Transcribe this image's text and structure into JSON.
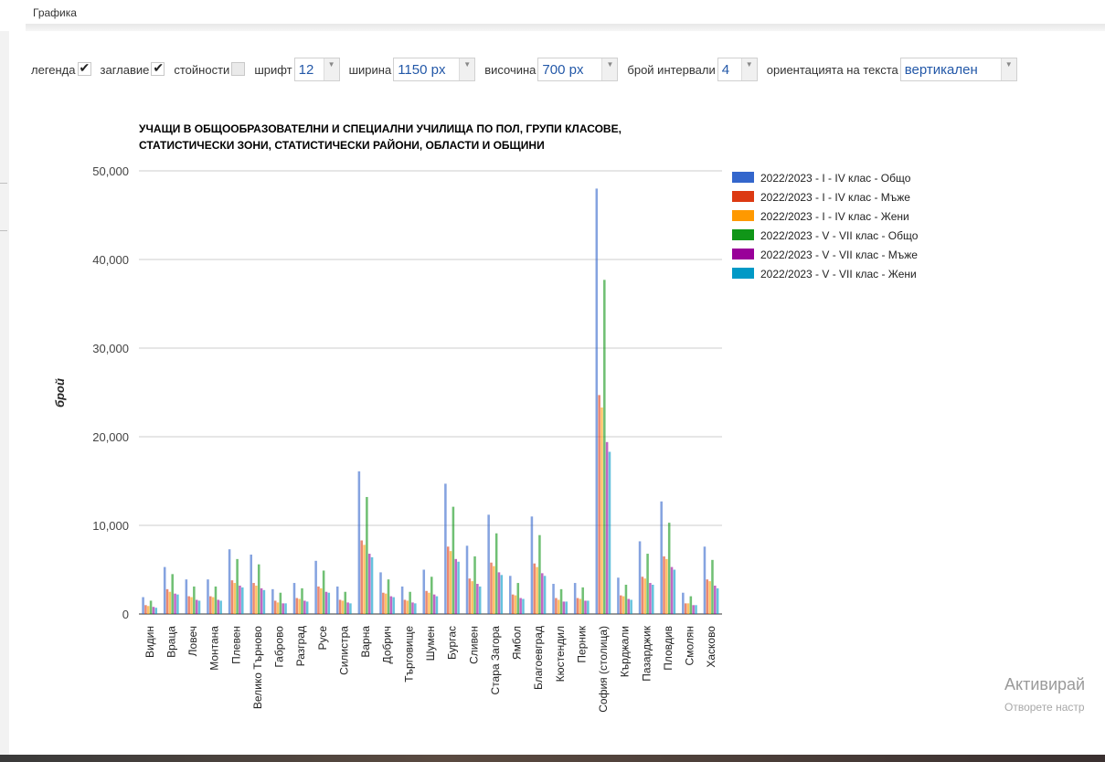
{
  "section": {
    "title": "Графика"
  },
  "controls": {
    "legend_label": "легенда",
    "legend_checked": true,
    "title_label": "заглавие",
    "title_checked": true,
    "values_label": "стойности",
    "values_checked": false,
    "font_label": "шрифт",
    "font_value": "12",
    "width_label": "ширина",
    "width_value": "1150 px",
    "height_label": "височина",
    "height_value": "700 px",
    "intervals_label": "брой интервали",
    "intervals_value": "4",
    "orientation_label": "ориентацията на текста",
    "orientation_value": "вертикален"
  },
  "watermark": {
    "line1": "Активирай",
    "line2": "Отворете настр"
  },
  "chart_data": {
    "type": "bar",
    "title_line1": "УЧАЩИ В ОБЩООБРАЗОВАТЕЛНИ И СПЕЦИАЛНИ УЧИЛИЩА ПО ПОЛ, ГРУПИ КЛАСОВЕ,",
    "title_line2": "СТАТИСТИЧЕСКИ ЗОНИ, СТАТИСТИЧЕСКИ РАЙОНИ, ОБЛАСТИ И ОБЩИНИ",
    "ylabel": "брой",
    "xlabel": "",
    "ylim": [
      0,
      50000
    ],
    "yticks": [
      0,
      10000,
      20000,
      30000,
      40000,
      50000
    ],
    "ytick_labels": [
      "0",
      "10,000",
      "20,000",
      "30,000",
      "40,000",
      "50,000"
    ],
    "grid": true,
    "legend_position": "right",
    "categories": [
      "Видин",
      "Враца",
      "Ловеч",
      "Монтана",
      "Плевен",
      "Велико Търново",
      "Габрово",
      "Разград",
      "Русе",
      "Силистра",
      "Варна",
      "Добрич",
      "Търговище",
      "Шумен",
      "Бургас",
      "Сливен",
      "Стара Загора",
      "Ямбол",
      "Благоевград",
      "Кюстендил",
      "Перник",
      "София (столица)",
      "Кърджали",
      "Пазарджик",
      "Пловдив",
      "Смолян",
      "Хасково"
    ],
    "series": [
      {
        "name": "2022/2023 - I - IV клас - Общо",
        "color": "#3366cc",
        "values": [
          1900,
          5300,
          3900,
          3900,
          7300,
          6700,
          2800,
          3500,
          6000,
          3100,
          16100,
          4700,
          3100,
          5000,
          14700,
          7700,
          11200,
          4300,
          11000,
          3400,
          3500,
          48000,
          4100,
          8200,
          12700,
          2400,
          7600
        ]
      },
      {
        "name": "2022/2023 - I - IV клас - Мъже",
        "color": "#dc3912",
        "values": [
          1000,
          2800,
          2000,
          2000,
          3800,
          3500,
          1500,
          1800,
          3100,
          1600,
          8300,
          2400,
          1600,
          2600,
          7600,
          4000,
          5800,
          2200,
          5700,
          1800,
          1800,
          24700,
          2100,
          4200,
          6500,
          1200,
          3900
        ]
      },
      {
        "name": "2022/2023 - I - IV клас - Жени",
        "color": "#ff9900",
        "values": [
          900,
          2500,
          1900,
          1900,
          3500,
          3200,
          1300,
          1700,
          2900,
          1500,
          7800,
          2300,
          1500,
          2400,
          7100,
          3700,
          5400,
          2100,
          5300,
          1600,
          1700,
          23300,
          2000,
          4000,
          6200,
          1200,
          3700
        ]
      },
      {
        "name": "2022/2023 - V - VII клас - Общо",
        "color": "#109618",
        "values": [
          1500,
          4500,
          3100,
          3100,
          6200,
          5600,
          2400,
          2900,
          4900,
          2500,
          13200,
          3900,
          2500,
          4200,
          12100,
          6500,
          9100,
          3500,
          8900,
          2800,
          3000,
          37700,
          3300,
          6800,
          10300,
          2000,
          6100
        ]
      },
      {
        "name": "2022/2023 - V - VII клас - Мъже",
        "color": "#990099",
        "values": [
          800,
          2300,
          1600,
          1600,
          3200,
          2900,
          1200,
          1500,
          2500,
          1300,
          6800,
          2000,
          1300,
          2200,
          6200,
          3400,
          4700,
          1800,
          4600,
          1400,
          1500,
          19400,
          1700,
          3500,
          5300,
          1000,
          3200
        ]
      },
      {
        "name": "2022/2023 - V - VII клас - Жени",
        "color": "#0099c6",
        "values": [
          700,
          2200,
          1500,
          1500,
          3000,
          2700,
          1200,
          1400,
          2400,
          1200,
          6400,
          1900,
          1200,
          2000,
          5900,
          3100,
          4400,
          1700,
          4300,
          1400,
          1500,
          18300,
          1600,
          3300,
          5000,
          1000,
          2900
        ]
      }
    ]
  }
}
